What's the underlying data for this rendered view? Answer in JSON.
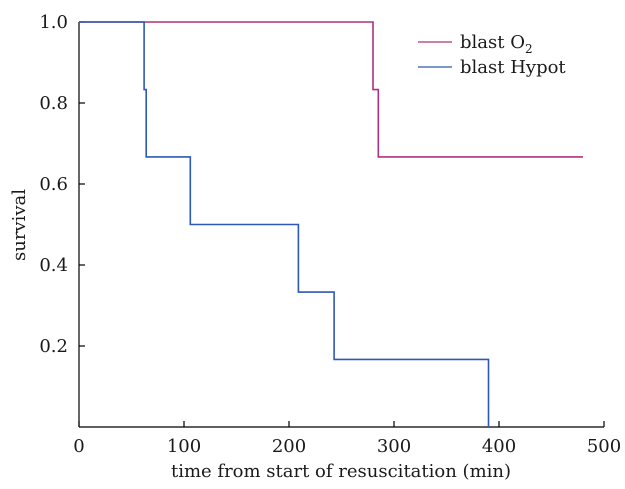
{
  "chart_data": {
    "type": "line",
    "xlabel": "time from start of resuscitation (min)",
    "ylabel": "survival",
    "xlim": [
      0,
      500
    ],
    "ylim": [
      0,
      1.0
    ],
    "xticks": [
      "0",
      "100",
      "200",
      "300",
      "400",
      "500"
    ],
    "yticks": [
      "0.2",
      "0.4",
      "0.6",
      "0.8",
      "1.0"
    ],
    "grid": false,
    "legend_position": "top-right",
    "step": true,
    "series": [
      {
        "name": "blast O2",
        "legend_prefix": "blast O",
        "legend_subscript": "2",
        "color": "#b0307f",
        "points": [
          [
            0,
            1.0
          ],
          [
            280,
            1.0
          ],
          [
            280,
            0.833
          ],
          [
            285,
            0.833
          ],
          [
            285,
            0.667
          ],
          [
            480,
            0.667
          ]
        ]
      },
      {
        "name": "blast Hypot",
        "legend_prefix": "blast Hypot",
        "legend_subscript": "",
        "color": "#2d58b8",
        "points": [
          [
            0,
            1.0
          ],
          [
            62,
            1.0
          ],
          [
            62,
            0.833
          ],
          [
            64,
            0.833
          ],
          [
            64,
            0.667
          ],
          [
            106,
            0.667
          ],
          [
            106,
            0.5
          ],
          [
            209,
            0.5
          ],
          [
            209,
            0.333
          ],
          [
            243,
            0.333
          ],
          [
            243,
            0.167
          ],
          [
            390,
            0.167
          ],
          [
            390,
            0.0
          ]
        ]
      }
    ]
  }
}
